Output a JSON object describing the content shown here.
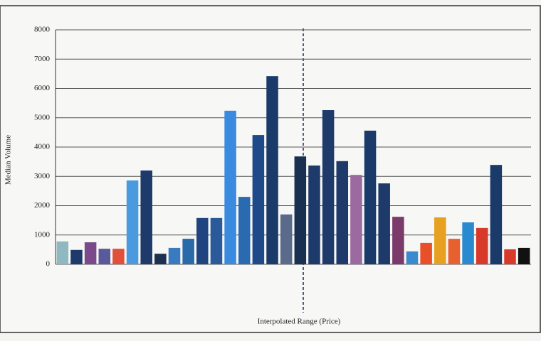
{
  "chart_data": {
    "type": "bar",
    "y_label": "Median Volume",
    "x_label": "Interpolated Range (Price)",
    "categories": [
      null,
      null,
      null,
      null,
      null,
      null,
      null,
      null,
      null,
      null,
      null,
      null,
      null,
      null,
      null,
      null,
      null,
      null,
      null,
      null,
      null,
      null,
      null,
      null,
      null,
      null,
      null,
      null,
      null,
      null,
      null,
      null,
      null,
      null
    ],
    "values": [
      780,
      490,
      750,
      530,
      530,
      2860,
      3200,
      360,
      560,
      870,
      1580,
      1580,
      5240,
      2300,
      4410,
      6420,
      1700,
      3680,
      3370,
      5260,
      3520,
      3050,
      4560,
      2760,
      1620,
      440,
      730,
      1600,
      870,
      1430,
      1240,
      3390,
      510,
      560
    ],
    "colors": [
      "#8fb8c0",
      "#1e3a6a",
      "#7a4a8a",
      "#5a5a9a",
      "#e0503a",
      "#4a9ae0",
      "#1e3a6a",
      "#1e3050",
      "#3a7ac0",
      "#2a6aa8",
      "#1f4480",
      "#2a5a9a",
      "#3a8ae0",
      "#2a6ab0",
      "#1e4a8a",
      "#1a3a6a",
      "#5a6a8a",
      "#1a3050",
      "#1e3a6a",
      "#1e3a6a",
      "#1e3a6a",
      "#9a6aa0",
      "#1a3a6a",
      "#1e3a6a",
      "#7a3a6a",
      "#3a8ad0",
      "#e8502a",
      "#e8a020",
      "#e86030",
      "#2a8ad0",
      "#d83a2a",
      "#1a3a6a",
      "#d83a2a",
      "#111111"
    ],
    "ylim": [
      0,
      8000
    ],
    "yticks": [
      0,
      1000,
      2000,
      3000,
      4000,
      5000,
      6000,
      7000,
      8000
    ],
    "grid": true
  }
}
